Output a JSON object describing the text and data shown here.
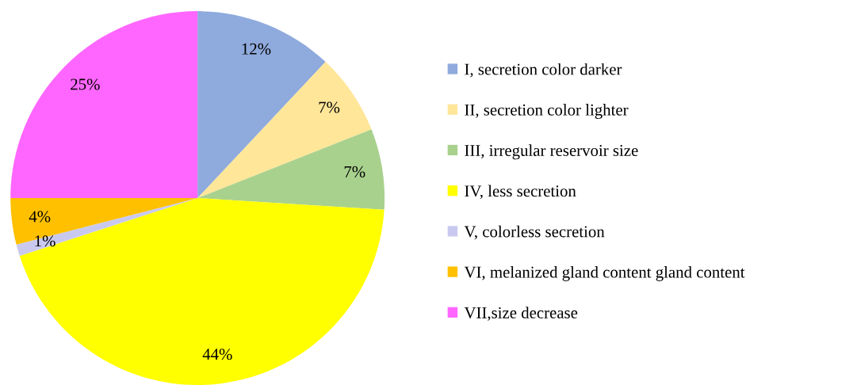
{
  "chart_data": {
    "type": "pie",
    "categories": [
      "I, secretion color darker",
      "II, secretion color lighter",
      "III, irregular reservoir size",
      "IV, less secretion",
      "V, colorless secretion",
      "VI, melanized gland content gland content",
      "VII,size decrease"
    ],
    "values": [
      12,
      7,
      7,
      44,
      1,
      4,
      25
    ],
    "colors": [
      "#8faadc",
      "#ffe699",
      "#a9d18e",
      "#ffff00",
      "#c9c9f0",
      "#ffc000",
      "#ff66ff"
    ],
    "value_labels": [
      "12%",
      "7%",
      "7%",
      "44%",
      "1%",
      "4%",
      "25%"
    ],
    "legend": "right"
  }
}
